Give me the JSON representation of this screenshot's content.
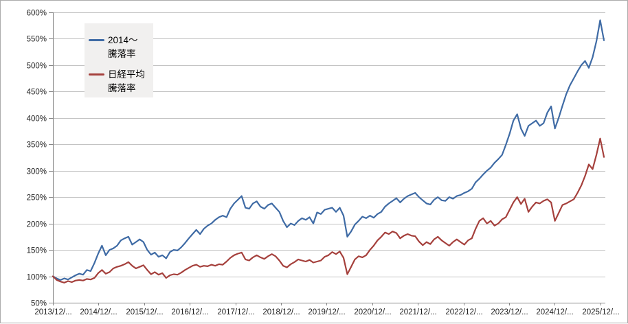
{
  "chart_data": {
    "type": "line",
    "title": "",
    "grid": true,
    "legend_position": "top-left-inside",
    "x_axis": {
      "tick_labels": [
        "2013/12/...",
        "2014/12/...",
        "2015/12/...",
        "2016/12/...",
        "2017/12/...",
        "2018/12/...",
        "2019/12/...",
        "2020/12/...",
        "2021/12/...",
        "2022/12/...",
        "2023/12/...",
        "2024/12/...",
        "2025/12/..."
      ]
    },
    "y_axis": {
      "min": 50,
      "max": 600,
      "step": 50,
      "tick_labels": [
        "50%",
        "100%",
        "150%",
        "200%",
        "250%",
        "300%",
        "350%",
        "400%",
        "450%",
        "500%",
        "550%",
        "600%"
      ]
    },
    "series": [
      {
        "name": "2014〜 騰落率",
        "color": "#3f6ba5",
        "values": [
          100,
          96,
          93,
          96,
          94,
          98,
          102,
          105,
          103,
          112,
          110,
          125,
          143,
          158,
          140,
          150,
          153,
          158,
          168,
          172,
          175,
          160,
          165,
          170,
          165,
          150,
          141,
          145,
          137,
          140,
          134,
          146,
          150,
          149,
          155,
          163,
          172,
          180,
          188,
          180,
          190,
          196,
          200,
          207,
          212,
          215,
          212,
          228,
          238,
          245,
          252,
          230,
          228,
          238,
          242,
          232,
          228,
          235,
          238,
          230,
          222,
          205,
          193,
          200,
          197,
          205,
          210,
          207,
          212,
          200,
          221,
          218,
          226,
          228,
          230,
          222,
          230,
          215,
          175,
          185,
          198,
          205,
          213,
          210,
          215,
          211,
          218,
          222,
          232,
          238,
          243,
          248,
          240,
          247,
          252,
          255,
          258,
          250,
          244,
          238,
          236,
          245,
          250,
          244,
          243,
          250,
          247,
          252,
          254,
          258,
          261,
          266,
          278,
          285,
          293,
          300,
          306,
          315,
          322,
          330,
          349,
          370,
          395,
          407,
          380,
          366,
          385,
          390,
          395,
          385,
          390,
          410,
          422,
          380,
          400,
          423,
          445,
          462,
          475,
          488,
          500,
          508,
          495,
          515,
          545,
          585,
          547
        ]
      },
      {
        "name": "日経平均 騰落率",
        "color": "#a5403c",
        "values": [
          100,
          93,
          90,
          88,
          91,
          89,
          92,
          93,
          92,
          95,
          94,
          97,
          106,
          112,
          105,
          108,
          115,
          118,
          120,
          123,
          127,
          120,
          115,
          118,
          121,
          112,
          104,
          108,
          103,
          106,
          97,
          102,
          104,
          103,
          107,
          112,
          116,
          120,
          122,
          118,
          120,
          119,
          122,
          120,
          123,
          122,
          128,
          135,
          140,
          143,
          145,
          132,
          130,
          136,
          140,
          136,
          133,
          138,
          142,
          138,
          130,
          120,
          117,
          123,
          127,
          132,
          130,
          128,
          131,
          126,
          128,
          130,
          137,
          140,
          146,
          142,
          147,
          135,
          104,
          118,
          132,
          138,
          136,
          140,
          150,
          158,
          168,
          175,
          183,
          180,
          185,
          182,
          172,
          177,
          180,
          177,
          176,
          166,
          159,
          165,
          161,
          170,
          175,
          168,
          163,
          158,
          165,
          170,
          165,
          160,
          168,
          172,
          190,
          205,
          210,
          200,
          205,
          196,
          200,
          208,
          212,
          226,
          240,
          250,
          237,
          247,
          222,
          232,
          240,
          238,
          243,
          246,
          240,
          205,
          220,
          235,
          238,
          242,
          246,
          258,
          272,
          290,
          312,
          303,
          330,
          361,
          326
        ]
      }
    ]
  },
  "legend": {
    "items": [
      {
        "line1": "2014〜",
        "line2": "騰落率"
      },
      {
        "line1": "日経平均",
        "line2": "騰落率"
      }
    ]
  },
  "colors": {
    "background": "#ffffff",
    "border": "#ababab",
    "grid": "#c3c3c3",
    "axis": "#868686",
    "text": "#1f1f1f",
    "legend_bg": "#f1f0ef",
    "series_blue": "#3f6ba5",
    "series_red": "#a5403c"
  }
}
